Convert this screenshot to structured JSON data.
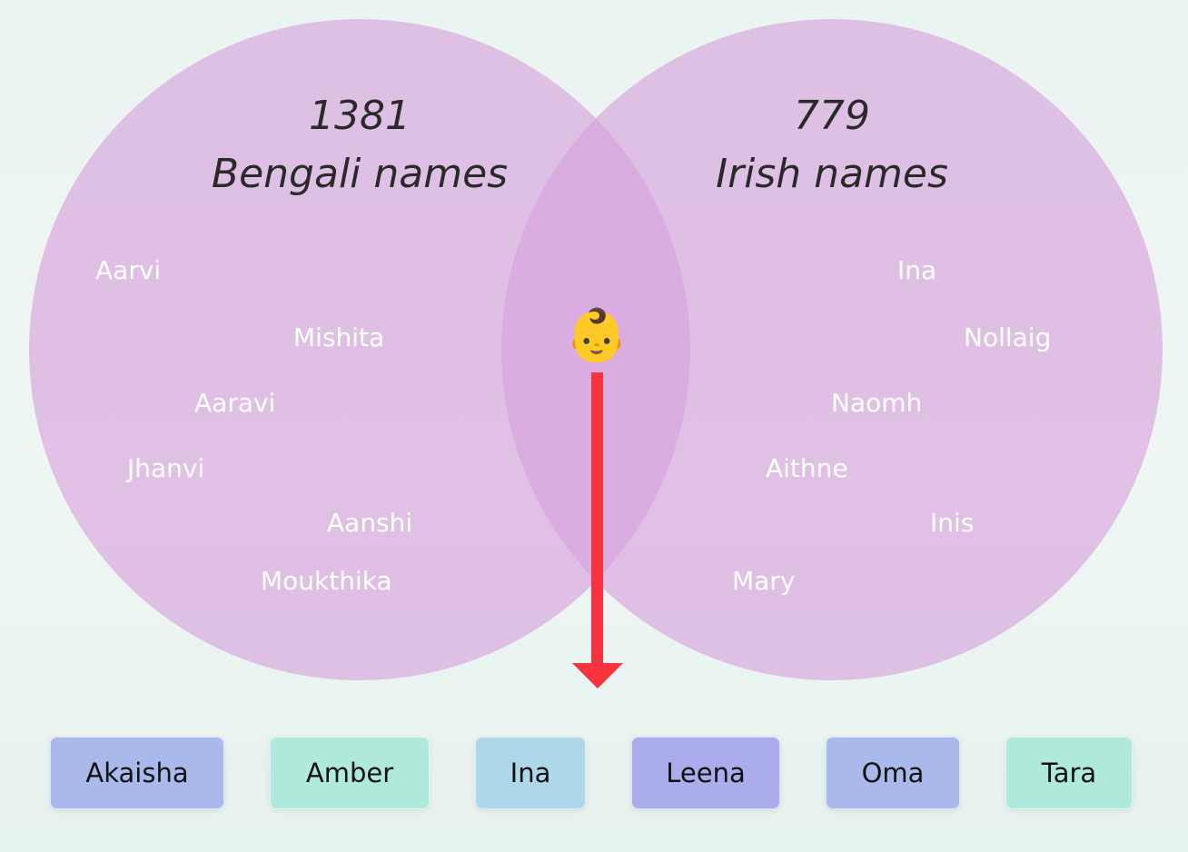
{
  "venn": {
    "left": {
      "count": 1381,
      "label": "Bengali names",
      "names": [
        "Aarvi",
        "Mishita",
        "Aaravi",
        "Jhanvi",
        "Aanshi",
        "Moukthika"
      ]
    },
    "right": {
      "count": 779,
      "label": "Irish names",
      "names": [
        "Ina",
        "Nollaig",
        "Naomh",
        "Aithne",
        "Inis",
        "Mary"
      ]
    },
    "icon": "👶"
  },
  "buttons": [
    "Akaisha",
    "Amber",
    "Ina",
    "Leena",
    "Oma",
    "Tara"
  ]
}
